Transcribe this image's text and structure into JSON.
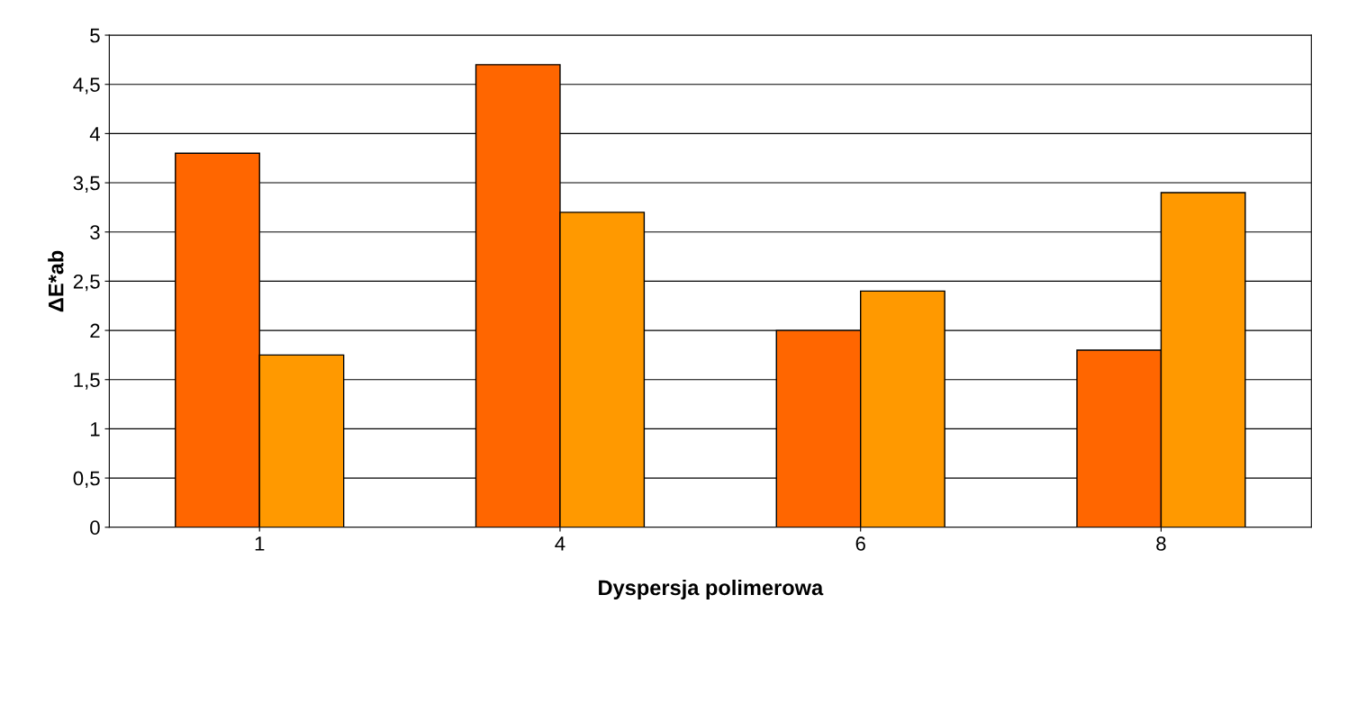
{
  "chart_data": {
    "type": "bar",
    "categories": [
      "1",
      "4",
      "6",
      "8"
    ],
    "series": [
      {
        "color": "#ff6600",
        "values": [
          3.8,
          4.7,
          2.0,
          1.8
        ]
      },
      {
        "color": "#ff9900",
        "values": [
          1.75,
          3.2,
          2.4,
          3.4
        ]
      }
    ],
    "xlabel": "Dyspersja polimerowa",
    "ylabel": "ΔE*ab",
    "ylim": [
      0,
      5
    ],
    "yticks": [
      0,
      {
        "value": 0.5,
        "label": "0,5"
      },
      1,
      {
        "value": 1.5,
        "label": "1,5"
      },
      2,
      {
        "value": 2.5,
        "label": "2,5"
      },
      3,
      {
        "value": 3.5,
        "label": "3,5"
      },
      4,
      {
        "value": 4.5,
        "label": "4,5"
      },
      5
    ],
    "grid": "y"
  }
}
